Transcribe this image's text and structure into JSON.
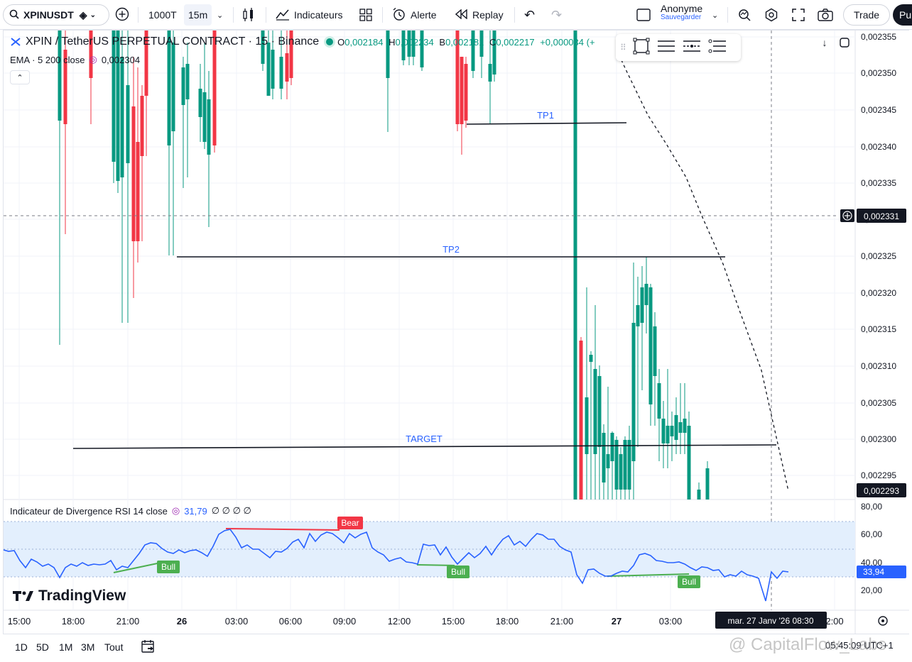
{
  "toolbar": {
    "symbol": "XPINUSDT",
    "count": "1000T",
    "interval": "15m",
    "indicators_label": "Indicateurs",
    "alert_label": "Alerte",
    "replay_label": "Replay",
    "user_name": "Anonyme",
    "save_label": "Sauvegarder",
    "trade_label": "Trade",
    "publish_label": "Pu"
  },
  "legend": {
    "title": "XPIN / TetherUS PERPETUAL CONTRACT · 15 · Binance",
    "o_key": "O",
    "o_val": "0,002184",
    "h_key": "H",
    "h_val": "0,002234",
    "b_key": "B",
    "b_val": "0,002181",
    "c_key": "C",
    "c_val": "0,002217",
    "change": "+0,000034 (+",
    "ema_label": "EMA · 5 200 close",
    "ema_value": "0,002304"
  },
  "price_axis": {
    "labels": [
      "0,002355",
      "0,002350",
      "0,002345",
      "0,002340",
      "0,002335",
      "0,002330",
      "0,002325",
      "0,002320",
      "0,002315",
      "0,002310",
      "0,002305",
      "0,002300",
      "0,002295"
    ],
    "crosshair_price": "0,002331",
    "last_price": "0,002293"
  },
  "annotations": {
    "tp1": "TP1",
    "tp2": "TP2",
    "target": "TARGET"
  },
  "rsi": {
    "legend": "Indicateur de Divergence RSI 14 close",
    "value": "31,79",
    "na": "∅ ∅ ∅ ∅",
    "axis": [
      "80,00",
      "60,00",
      "40,00",
      "20,00"
    ],
    "current": "33,94",
    "bear_label": "Bear",
    "bull_label": "Bull",
    "colors": {
      "line": "#2962ff",
      "bear": "#f23645",
      "bull": "#4caf50",
      "band": "#e3effd"
    }
  },
  "time_axis": {
    "labels": [
      "15:00",
      "18:00",
      "21:00",
      "26",
      "03:00",
      "06:00",
      "09:00",
      "12:00",
      "15:00",
      "18:00",
      "21:00",
      "27",
      "03:00",
      "2:00"
    ],
    "crosshair_time": "mar. 27 Janv '26   08:30"
  },
  "bottom": {
    "ranges": [
      "1D",
      "5D",
      "1M",
      "3M",
      "Tout"
    ],
    "clock": "05:45:09 UTC+1",
    "watermark": "@ CapitalFlow_Labs"
  },
  "brand": {
    "logo_text": "TradingView"
  },
  "colors": {
    "up": "#089981",
    "down": "#f23645",
    "accent": "#2962ff"
  }
}
